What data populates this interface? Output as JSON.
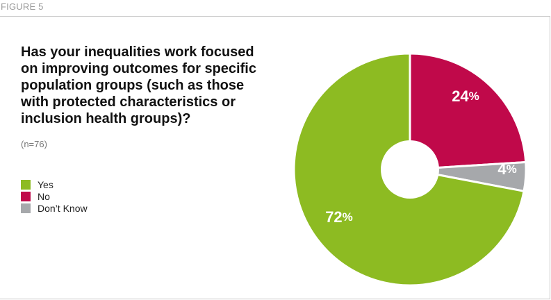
{
  "figure_label": "FIGURE 5",
  "title_lines": [
    "Has your inequalities work focused",
    "on improving outcomes for specific",
    "population groups (such as those",
    "with protected characteristics or",
    "inclusion health groups)?"
  ],
  "subtitle": "(n=76)",
  "colors": {
    "yes": "#8dbb22",
    "no": "#c0094a",
    "dont_know": "#a6a8ab"
  },
  "chart_data": {
    "type": "pie",
    "donut": true,
    "title": "Has your inequalities work focused on improving outcomes for specific population groups (such as those with protected characteristics or inclusion health groups)?",
    "subtitle": "(n=76)",
    "legend_position": "left",
    "slices": [
      {
        "label": "No",
        "value": 24,
        "display": "24",
        "color": "#c0094a"
      },
      {
        "label": "Don't Know",
        "value": 4,
        "display": "4",
        "color": "#a6a8ab"
      },
      {
        "label": "Yes",
        "value": 72,
        "display": "72",
        "color": "#8dbb22"
      }
    ],
    "legend": [
      {
        "label": "Yes",
        "color": "#8dbb22"
      },
      {
        "label": "No",
        "color": "#c0094a"
      },
      {
        "label": "Don’t Know",
        "color": "#a6a8ab"
      }
    ],
    "value_suffix": "%"
  }
}
